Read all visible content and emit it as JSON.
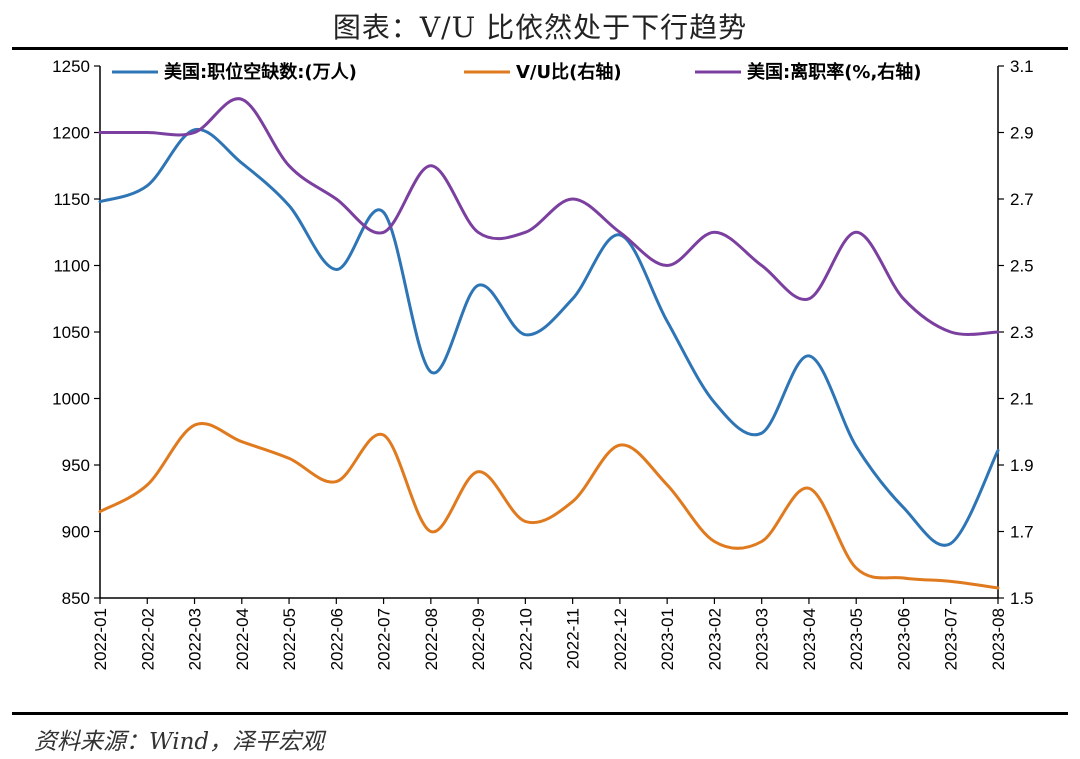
{
  "title": "图表：V/U 比依然处于下行趋势",
  "source": "资料来源：Wind，泽平宏观",
  "chart_data": {
    "type": "line",
    "categories": [
      "2022-01",
      "2022-02",
      "2022-03",
      "2022-04",
      "2022-05",
      "2022-06",
      "2022-07",
      "2022-08",
      "2022-09",
      "2022-10",
      "2022-11",
      "2022-12",
      "2023-01",
      "2023-02",
      "2023-03",
      "2023-04",
      "2023-05",
      "2023-06",
      "2023-07",
      "2023-08"
    ],
    "y_left": {
      "min": 850,
      "max": 1250,
      "ticks": [
        850,
        900,
        950,
        1000,
        1050,
        1100,
        1150,
        1200,
        1250
      ]
    },
    "y_right": {
      "min": 1.5,
      "max": 3.1,
      "ticks": [
        "1.5",
        "1.7",
        "1.9",
        "2.1",
        "2.3",
        "2.5",
        "2.7",
        "2.9",
        "3.1"
      ]
    },
    "legend_position": "top",
    "grid": false,
    "series": [
      {
        "name": "美国:职位空缺数:(万人)",
        "axis": "left",
        "color": "#2E75B6",
        "values": [
          1148,
          1160,
          1202,
          1177,
          1145,
          1097,
          1140,
          1020,
          1085,
          1048,
          1075,
          1123,
          1058,
          997,
          974,
          1032,
          964,
          918,
          891,
          961
        ]
      },
      {
        "name": "V/U比(右轴)",
        "axis": "right",
        "color": "#E07A1F",
        "values": [
          1.76,
          1.84,
          2.02,
          1.97,
          1.92,
          1.85,
          1.99,
          1.7,
          1.88,
          1.73,
          1.79,
          1.96,
          1.84,
          1.67,
          1.67,
          1.83,
          1.59,
          1.56,
          1.55,
          1.53
        ]
      },
      {
        "name": "美国:离职率(%,右轴)",
        "axis": "right",
        "color": "#7B3FA0",
        "values": [
          2.9,
          2.9,
          2.9,
          3.0,
          2.8,
          2.7,
          2.6,
          2.8,
          2.6,
          2.6,
          2.7,
          2.6,
          2.5,
          2.6,
          2.5,
          2.4,
          2.6,
          2.4,
          2.3,
          2.3
        ]
      }
    ]
  }
}
